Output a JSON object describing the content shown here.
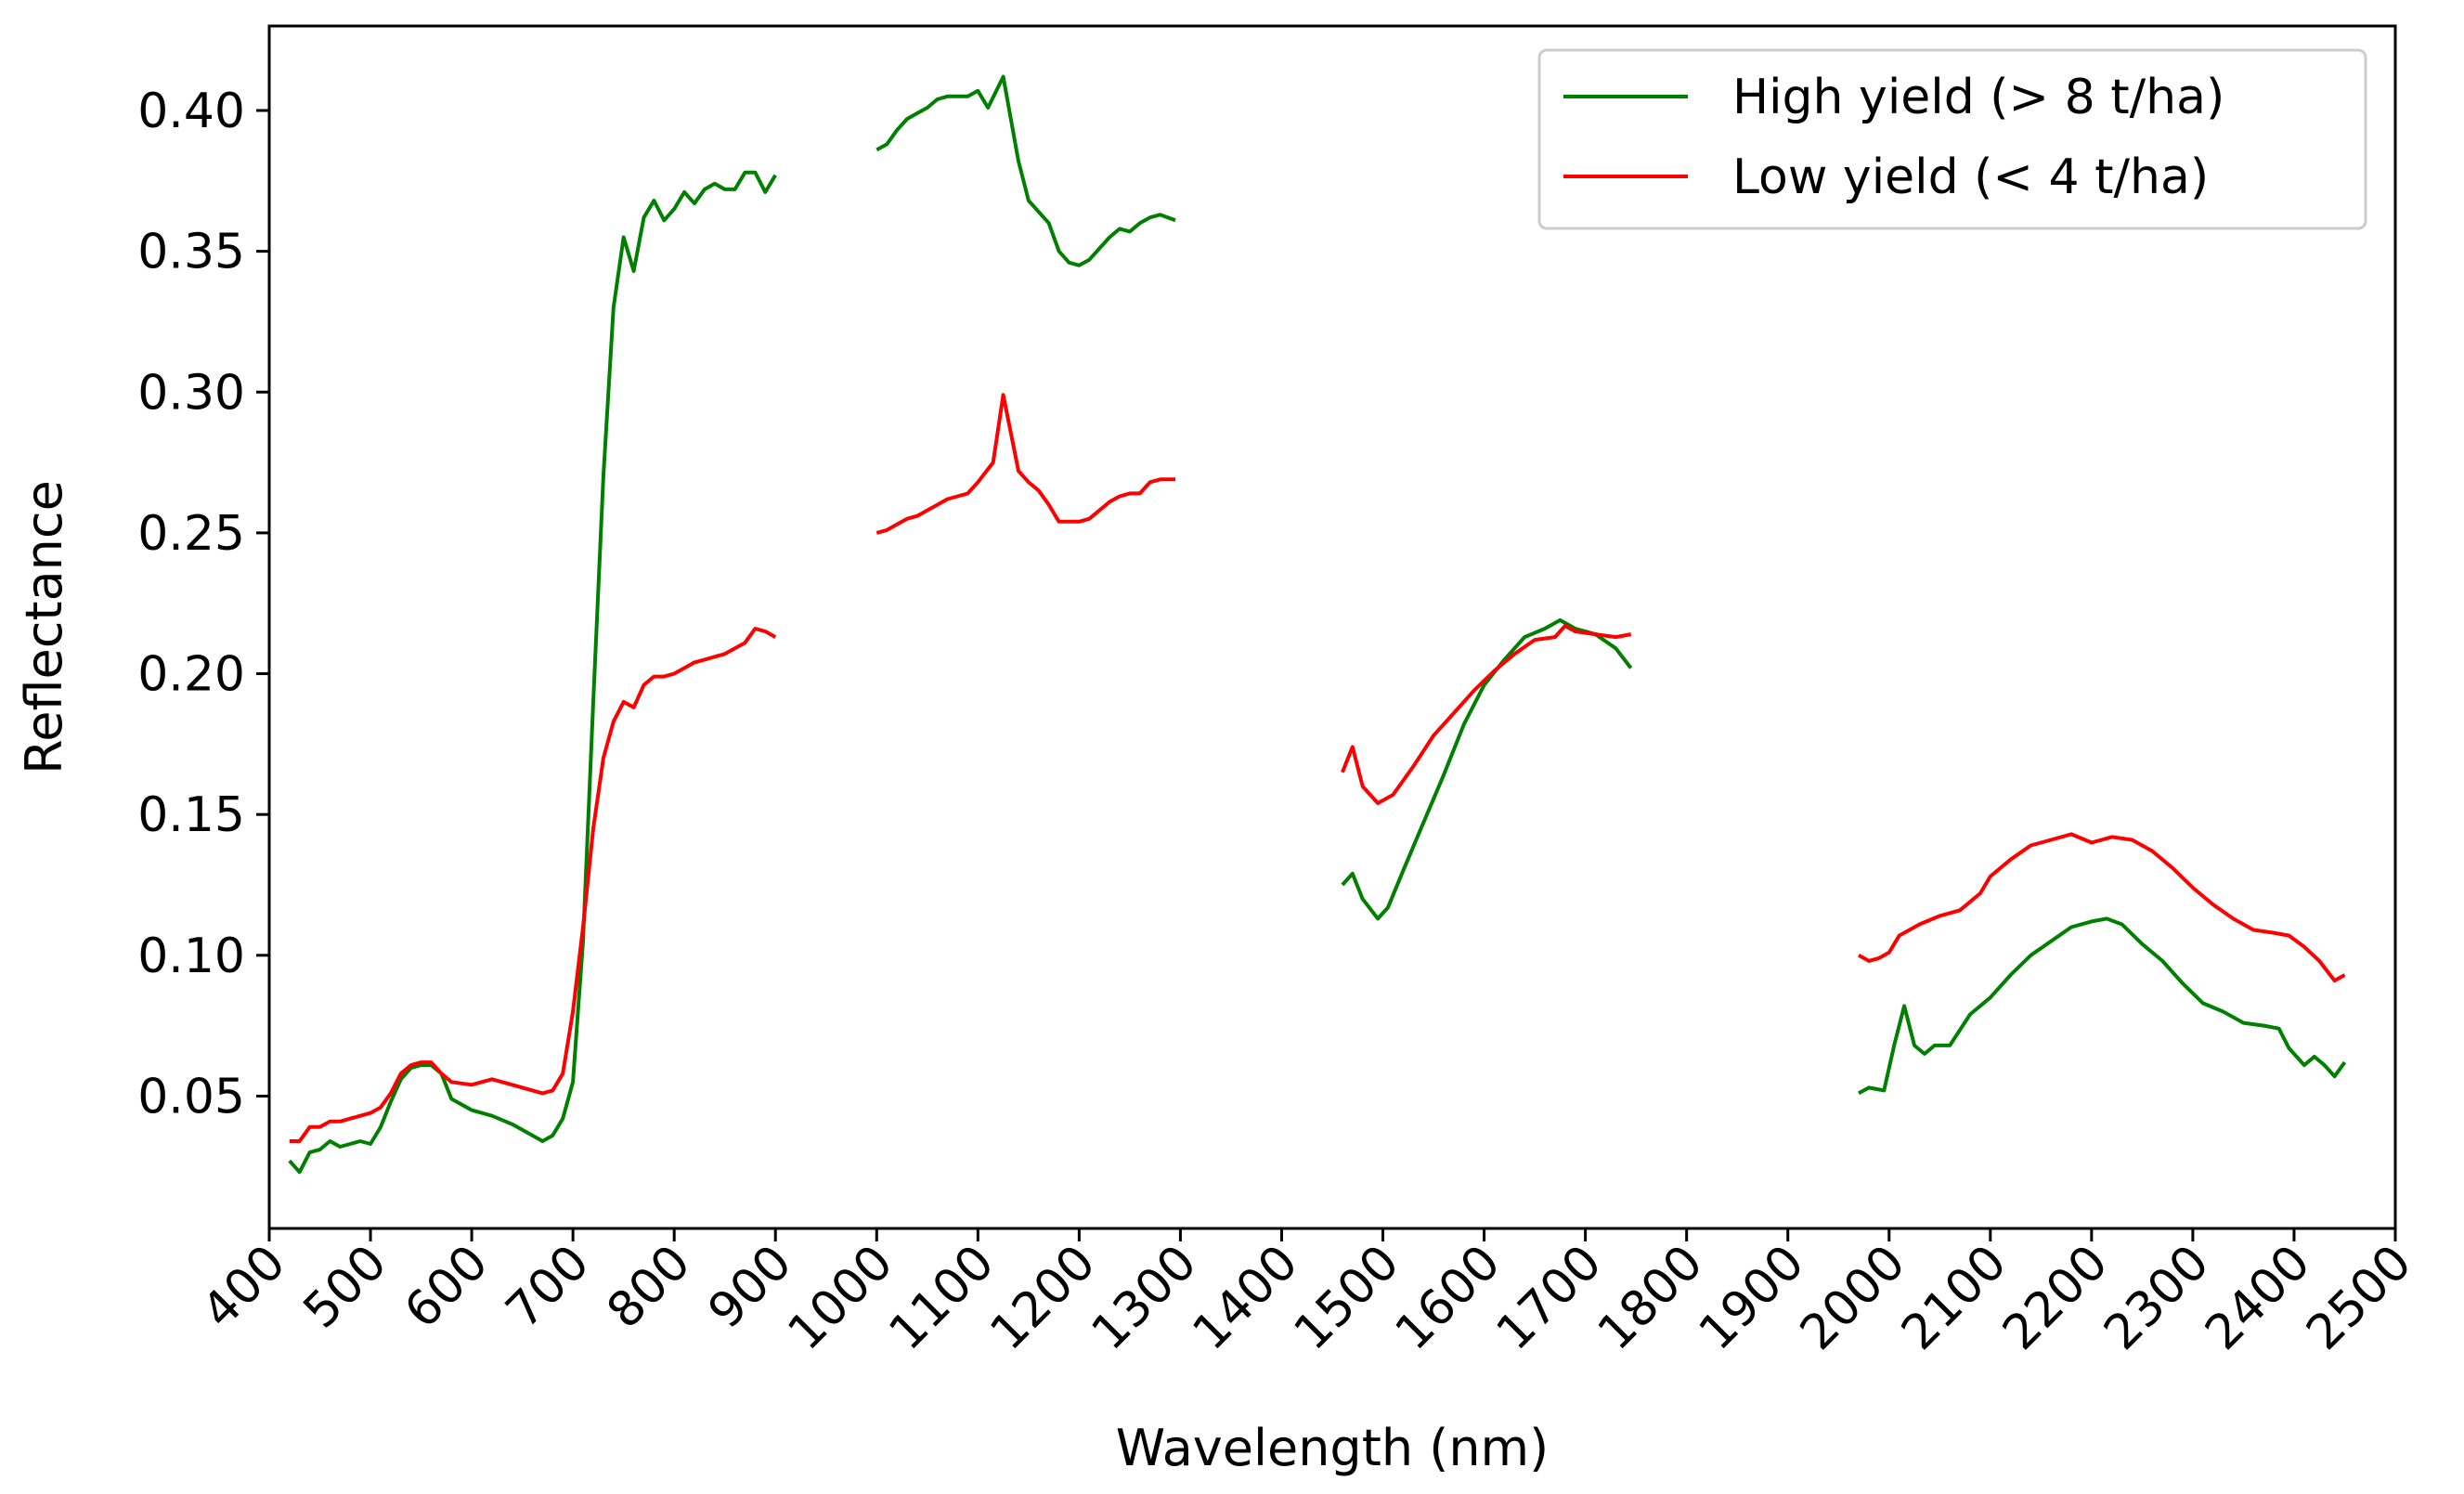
{
  "chart_data": {
    "type": "line",
    "title": "",
    "xlabel": "Wavelength (nm)",
    "ylabel": "Reflectance",
    "xlim": [
      400,
      2500
    ],
    "ylim": [
      0.003,
      0.43
    ],
    "xticks": [
      400,
      500,
      600,
      700,
      800,
      900,
      1000,
      1100,
      1200,
      1300,
      1400,
      1500,
      1600,
      1700,
      1800,
      1900,
      2000,
      2100,
      2200,
      2300,
      2400,
      2500
    ],
    "xtick_labels": [
      "400",
      "500",
      "600",
      "700",
      "800",
      "900",
      "1000",
      "1100",
      "1200",
      "1300",
      "1400",
      "1500",
      "1600",
      "1700",
      "1800",
      "1900",
      "2000",
      "2100",
      "2200",
      "2300",
      "2400",
      "2500"
    ],
    "yticks": [
      0.05,
      0.1,
      0.15,
      0.2,
      0.25,
      0.3,
      0.35,
      0.4
    ],
    "ytick_labels": [
      "0.05",
      "0.10",
      "0.15",
      "0.20",
      "0.25",
      "0.30",
      "0.35",
      "0.40"
    ],
    "grid": false,
    "legend_position": "top-right",
    "series": [
      {
        "name": "High yield (> 8 t/ha)",
        "color": "#008000",
        "segments": [
          [
            [
              420,
              0.027
            ],
            [
              430,
              0.023
            ],
            [
              440,
              0.03
            ],
            [
              450,
              0.031
            ],
            [
              460,
              0.034
            ],
            [
              470,
              0.032
            ],
            [
              480,
              0.033
            ],
            [
              490,
              0.034
            ],
            [
              500,
              0.033
            ],
            [
              510,
              0.039
            ],
            [
              520,
              0.048
            ],
            [
              530,
              0.056
            ],
            [
              540,
              0.06
            ],
            [
              550,
              0.061
            ],
            [
              560,
              0.061
            ],
            [
              570,
              0.058
            ],
            [
              580,
              0.049
            ],
            [
              600,
              0.045
            ],
            [
              620,
              0.043
            ],
            [
              640,
              0.04
            ],
            [
              660,
              0.036
            ],
            [
              670,
              0.034
            ],
            [
              680,
              0.036
            ],
            [
              690,
              0.042
            ],
            [
              700,
              0.055
            ],
            [
              710,
              0.105
            ],
            [
              720,
              0.19
            ],
            [
              730,
              0.27
            ],
            [
              740,
              0.33
            ],
            [
              750,
              0.355
            ],
            [
              760,
              0.343
            ],
            [
              770,
              0.362
            ],
            [
              780,
              0.368
            ],
            [
              790,
              0.361
            ],
            [
              800,
              0.365
            ],
            [
              810,
              0.371
            ],
            [
              820,
              0.367
            ],
            [
              830,
              0.372
            ],
            [
              840,
              0.374
            ],
            [
              850,
              0.372
            ],
            [
              860,
              0.372
            ],
            [
              870,
              0.378
            ],
            [
              880,
              0.378
            ],
            [
              890,
              0.371
            ],
            [
              900,
              0.377
            ]
          ],
          [
            [
              1000,
              0.386
            ],
            [
              1010,
              0.388
            ],
            [
              1020,
              0.393
            ],
            [
              1030,
              0.397
            ],
            [
              1040,
              0.399
            ],
            [
              1050,
              0.401
            ],
            [
              1060,
              0.404
            ],
            [
              1070,
              0.405
            ],
            [
              1080,
              0.405
            ],
            [
              1090,
              0.405
            ],
            [
              1100,
              0.407
            ],
            [
              1110,
              0.401
            ],
            [
              1125,
              0.412
            ],
            [
              1140,
              0.382
            ],
            [
              1150,
              0.368
            ],
            [
              1160,
              0.364
            ],
            [
              1170,
              0.36
            ],
            [
              1180,
              0.35
            ],
            [
              1190,
              0.346
            ],
            [
              1200,
              0.345
            ],
            [
              1210,
              0.347
            ],
            [
              1220,
              0.351
            ],
            [
              1230,
              0.355
            ],
            [
              1240,
              0.358
            ],
            [
              1250,
              0.357
            ],
            [
              1260,
              0.36
            ],
            [
              1270,
              0.362
            ],
            [
              1280,
              0.363
            ],
            [
              1295,
              0.361
            ]
          ],
          [
            [
              1460,
              0.125
            ],
            [
              1470,
              0.129
            ],
            [
              1480,
              0.12
            ],
            [
              1495,
              0.113
            ],
            [
              1505,
              0.117
            ],
            [
              1520,
              0.13
            ],
            [
              1540,
              0.147
            ],
            [
              1560,
              0.164
            ],
            [
              1580,
              0.182
            ],
            [
              1600,
              0.196
            ],
            [
              1620,
              0.205
            ],
            [
              1640,
              0.213
            ],
            [
              1660,
              0.216
            ],
            [
              1675,
              0.219
            ],
            [
              1690,
              0.216
            ],
            [
              1710,
              0.214
            ],
            [
              1730,
              0.209
            ],
            [
              1745,
              0.202
            ]
          ],
          [
            [
              1970,
              0.051
            ],
            [
              1980,
              0.053
            ],
            [
              1995,
              0.052
            ],
            [
              2005,
              0.068
            ],
            [
              2015,
              0.082
            ],
            [
              2025,
              0.068
            ],
            [
              2035,
              0.065
            ],
            [
              2045,
              0.068
            ],
            [
              2060,
              0.068
            ],
            [
              2080,
              0.079
            ],
            [
              2100,
              0.085
            ],
            [
              2120,
              0.093
            ],
            [
              2140,
              0.1
            ],
            [
              2160,
              0.105
            ],
            [
              2180,
              0.11
            ],
            [
              2200,
              0.112
            ],
            [
              2215,
              0.113
            ],
            [
              2230,
              0.111
            ],
            [
              2250,
              0.104
            ],
            [
              2270,
              0.098
            ],
            [
              2290,
              0.09
            ],
            [
              2310,
              0.083
            ],
            [
              2330,
              0.08
            ],
            [
              2350,
              0.076
            ],
            [
              2370,
              0.075
            ],
            [
              2385,
              0.074
            ],
            [
              2395,
              0.067
            ],
            [
              2410,
              0.061
            ],
            [
              2420,
              0.064
            ],
            [
              2430,
              0.061
            ],
            [
              2440,
              0.057
            ],
            [
              2450,
              0.062
            ]
          ]
        ]
      },
      {
        "name": "Low yield (< 4 t/ha)",
        "color": "#ff0000",
        "segments": [
          [
            [
              420,
              0.034
            ],
            [
              430,
              0.034
            ],
            [
              440,
              0.039
            ],
            [
              450,
              0.039
            ],
            [
              460,
              0.041
            ],
            [
              470,
              0.041
            ],
            [
              480,
              0.042
            ],
            [
              490,
              0.043
            ],
            [
              500,
              0.044
            ],
            [
              510,
              0.046
            ],
            [
              520,
              0.051
            ],
            [
              530,
              0.058
            ],
            [
              540,
              0.061
            ],
            [
              550,
              0.062
            ],
            [
              560,
              0.062
            ],
            [
              570,
              0.058
            ],
            [
              580,
              0.055
            ],
            [
              600,
              0.054
            ],
            [
              620,
              0.056
            ],
            [
              640,
              0.054
            ],
            [
              660,
              0.052
            ],
            [
              670,
              0.051
            ],
            [
              680,
              0.052
            ],
            [
              690,
              0.058
            ],
            [
              700,
              0.08
            ],
            [
              710,
              0.11
            ],
            [
              720,
              0.145
            ],
            [
              730,
              0.17
            ],
            [
              740,
              0.183
            ],
            [
              750,
              0.19
            ],
            [
              760,
              0.188
            ],
            [
              770,
              0.196
            ],
            [
              780,
              0.199
            ],
            [
              790,
              0.199
            ],
            [
              800,
              0.2
            ],
            [
              810,
              0.202
            ],
            [
              820,
              0.204
            ],
            [
              830,
              0.205
            ],
            [
              840,
              0.206
            ],
            [
              850,
              0.207
            ],
            [
              860,
              0.209
            ],
            [
              870,
              0.211
            ],
            [
              880,
              0.216
            ],
            [
              890,
              0.215
            ],
            [
              900,
              0.213
            ]
          ],
          [
            [
              1000,
              0.25
            ],
            [
              1010,
              0.251
            ],
            [
              1020,
              0.253
            ],
            [
              1030,
              0.255
            ],
            [
              1040,
              0.256
            ],
            [
              1050,
              0.258
            ],
            [
              1060,
              0.26
            ],
            [
              1070,
              0.262
            ],
            [
              1080,
              0.263
            ],
            [
              1090,
              0.264
            ],
            [
              1100,
              0.268
            ],
            [
              1115,
              0.275
            ],
            [
              1125,
              0.299
            ],
            [
              1140,
              0.272
            ],
            [
              1150,
              0.268
            ],
            [
              1160,
              0.265
            ],
            [
              1170,
              0.26
            ],
            [
              1180,
              0.254
            ],
            [
              1190,
              0.254
            ],
            [
              1200,
              0.254
            ],
            [
              1210,
              0.255
            ],
            [
              1220,
              0.258
            ],
            [
              1230,
              0.261
            ],
            [
              1240,
              0.263
            ],
            [
              1250,
              0.264
            ],
            [
              1260,
              0.264
            ],
            [
              1270,
              0.268
            ],
            [
              1280,
              0.269
            ],
            [
              1295,
              0.269
            ]
          ],
          [
            [
              1460,
              0.165
            ],
            [
              1470,
              0.174
            ],
            [
              1480,
              0.16
            ],
            [
              1495,
              0.154
            ],
            [
              1510,
              0.157
            ],
            [
              1530,
              0.167
            ],
            [
              1550,
              0.178
            ],
            [
              1570,
              0.186
            ],
            [
              1590,
              0.194
            ],
            [
              1610,
              0.201
            ],
            [
              1630,
              0.207
            ],
            [
              1650,
              0.212
            ],
            [
              1670,
              0.213
            ],
            [
              1680,
              0.217
            ],
            [
              1690,
              0.215
            ],
            [
              1710,
              0.214
            ],
            [
              1730,
              0.213
            ],
            [
              1745,
              0.214
            ]
          ],
          [
            [
              1970,
              0.1
            ],
            [
              1980,
              0.098
            ],
            [
              1990,
              0.099
            ],
            [
              2000,
              0.101
            ],
            [
              2010,
              0.107
            ],
            [
              2030,
              0.111
            ],
            [
              2050,
              0.114
            ],
            [
              2070,
              0.116
            ],
            [
              2090,
              0.122
            ],
            [
              2100,
              0.128
            ],
            [
              2120,
              0.134
            ],
            [
              2140,
              0.139
            ],
            [
              2160,
              0.141
            ],
            [
              2180,
              0.143
            ],
            [
              2200,
              0.14
            ],
            [
              2220,
              0.142
            ],
            [
              2240,
              0.141
            ],
            [
              2260,
              0.137
            ],
            [
              2280,
              0.131
            ],
            [
              2300,
              0.124
            ],
            [
              2320,
              0.118
            ],
            [
              2340,
              0.113
            ],
            [
              2360,
              0.109
            ],
            [
              2380,
              0.108
            ],
            [
              2395,
              0.107
            ],
            [
              2410,
              0.103
            ],
            [
              2425,
              0.098
            ],
            [
              2440,
              0.091
            ],
            [
              2450,
              0.093
            ]
          ]
        ]
      }
    ]
  }
}
